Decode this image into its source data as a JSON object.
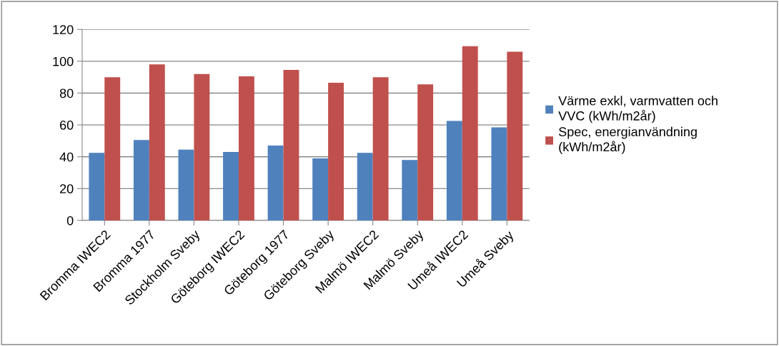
{
  "chart_data": {
    "type": "bar",
    "categories": [
      "Bromma IWEC2",
      "Bromma 1977",
      "Stockholm Sveby",
      "Göteborg IWEC2",
      "Göteborg 1977",
      "Göteborg Sveby",
      "Malmö IWEC2",
      "Malmö Sveby",
      "Umeå IWEC2",
      "Umeå Sveby"
    ],
    "series": [
      {
        "name": "Värme exkl, varmvatten och\nVVC (kWh/m2år)",
        "color": "#4f81bd",
        "values": [
          42.5,
          50.5,
          44.5,
          43,
          47,
          39,
          42.5,
          38,
          62.5,
          58.5
        ]
      },
      {
        "name": "Spec, energianvändning\n(kWh/m2år)",
        "color": "#c0504d",
        "values": [
          90,
          98,
          92,
          90.5,
          94.5,
          86.5,
          90,
          85.5,
          109.5,
          106
        ]
      }
    ],
    "ylim": [
      0,
      120
    ],
    "yticks": [
      0,
      20,
      40,
      60,
      80,
      100,
      120
    ],
    "grid": "y",
    "legend": "right"
  }
}
